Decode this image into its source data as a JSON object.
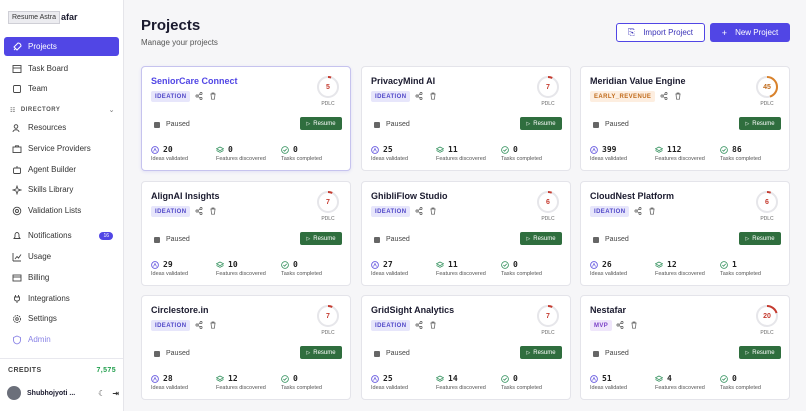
{
  "sidebar": {
    "tooltip": "Resume Astra",
    "brand_suffix": "afar",
    "items": [
      {
        "label": "Projects",
        "icon": "rocket-icon"
      },
      {
        "label": "Task Board",
        "icon": "board-icon"
      },
      {
        "label": "Team",
        "icon": "team-icon"
      }
    ],
    "directory_label": "DIRECTORY",
    "directory_items": [
      {
        "label": "Resources",
        "icon": "users-icon"
      },
      {
        "label": "Service Providers",
        "icon": "briefcase-icon"
      },
      {
        "label": "Agent Builder",
        "icon": "bot-icon"
      },
      {
        "label": "Skills Library",
        "icon": "puzzle-icon"
      },
      {
        "label": "Validation Lists",
        "icon": "target-icon"
      }
    ],
    "bottom_items": [
      {
        "label": "Notifications",
        "icon": "bell-icon",
        "badge": "16"
      },
      {
        "label": "Usage",
        "icon": "chart-icon"
      },
      {
        "label": "Billing",
        "icon": "card-icon"
      },
      {
        "label": "Integrations",
        "icon": "plug-icon"
      },
      {
        "label": "Settings",
        "icon": "gear-icon"
      },
      {
        "label": "Admin",
        "icon": "shield-icon"
      }
    ],
    "credits_label": "CREDITS",
    "credits_value": "7,575",
    "user_name": "Shubhojyoti ..."
  },
  "header": {
    "title": "Projects",
    "subtitle": "Manage your projects",
    "import_label": "Import Project",
    "new_label": "New Project"
  },
  "labels": {
    "pdlc": "PDLC",
    "paused": "Paused",
    "resume": "Resume",
    "ideas": "Ideas validated",
    "features": "Features discovered",
    "tasks": "Tasks completed"
  },
  "colors": {
    "accent": "#5146e5",
    "resume": "#2f6e3e",
    "ring_red": "#c53b2f",
    "ring_orange": "#d9822b"
  },
  "projects": [
    {
      "name": "SeniorCare Connect",
      "stage": "IDEATION",
      "pdlc": "5",
      "progress": 5,
      "ideas": "20",
      "features": "0",
      "tasks": "0"
    },
    {
      "name": "PrivacyMind AI",
      "stage": "IDEATION",
      "pdlc": "7",
      "progress": 7,
      "ideas": "25",
      "features": "11",
      "tasks": "0"
    },
    {
      "name": "Meridian Value Engine",
      "stage": "EARLY_REVENUE",
      "pdlc": "45",
      "progress": 45,
      "ideas": "399",
      "features": "112",
      "tasks": "86"
    },
    {
      "name": "AlignAI Insights",
      "stage": "IDEATION",
      "pdlc": "7",
      "progress": 7,
      "ideas": "29",
      "features": "10",
      "tasks": "0"
    },
    {
      "name": "GhibliFlow Studio",
      "stage": "IDEATION",
      "pdlc": "6",
      "progress": 6,
      "ideas": "27",
      "features": "11",
      "tasks": "0"
    },
    {
      "name": "CloudNest Platform",
      "stage": "IDEATION",
      "pdlc": "6",
      "progress": 6,
      "ideas": "26",
      "features": "12",
      "tasks": "1"
    },
    {
      "name": "Circlestore.in",
      "stage": "IDEATION",
      "pdlc": "7",
      "progress": 7,
      "ideas": "28",
      "features": "12",
      "tasks": "0"
    },
    {
      "name": "GridSight Analytics",
      "stage": "IDEATION",
      "pdlc": "7",
      "progress": 7,
      "ideas": "25",
      "features": "14",
      "tasks": "0"
    },
    {
      "name": "Nestafar",
      "stage": "MVP",
      "pdlc": "20",
      "progress": 20,
      "ideas": "51",
      "features": "4",
      "tasks": "0"
    }
  ]
}
